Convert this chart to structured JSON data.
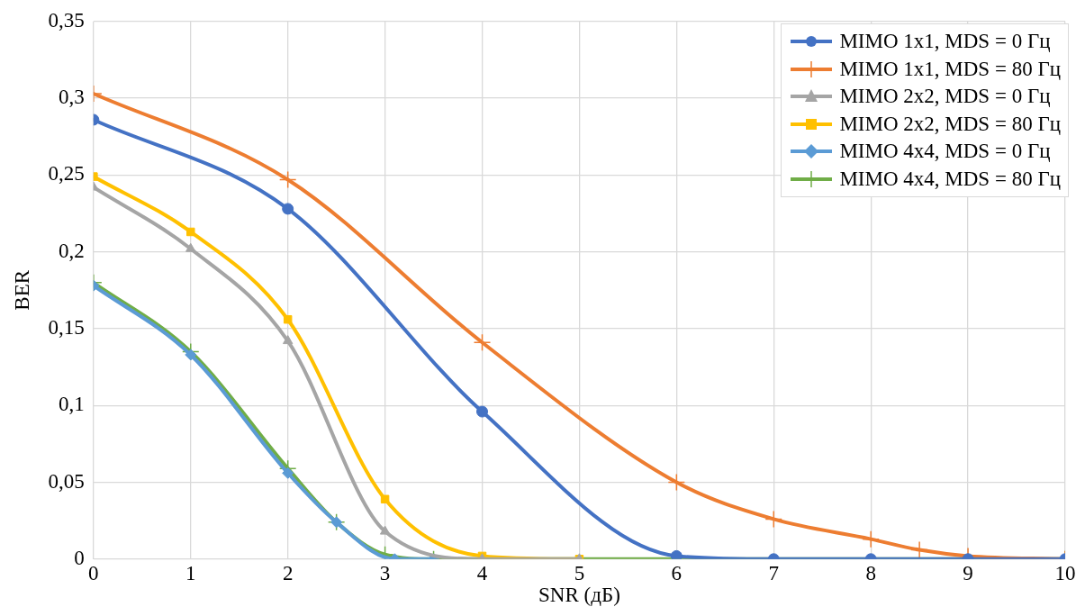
{
  "chart_data": {
    "type": "line",
    "xlabel": "SNR (дБ)",
    "ylabel": "BER",
    "legend": "top right",
    "grid": true,
    "line_style": "solid",
    "xlim": [
      0,
      10
    ],
    "xticks": [
      0,
      1,
      2,
      3,
      4,
      5,
      6,
      7,
      8,
      9,
      10
    ],
    "ylim": [
      0,
      0.35
    ],
    "yticks": [
      {
        "value": 0,
        "label": "0"
      },
      {
        "value": 0.05,
        "label": "0,05"
      },
      {
        "value": 0.1,
        "label": "0,1"
      },
      {
        "value": 0.15,
        "label": "0,15"
      },
      {
        "value": 0.2,
        "label": "0,2"
      },
      {
        "value": 0.25,
        "label": "0,25"
      },
      {
        "value": 0.3,
        "label": "0,3"
      },
      {
        "value": 0.35,
        "label": "0,35"
      }
    ],
    "series": [
      {
        "name": "MIMO 1x1, MDS = 0 Гц",
        "color": "#4472c4",
        "marker": "circle",
        "x": [
          0,
          2,
          4,
          6,
          7,
          8,
          9,
          10
        ],
        "values": [
          0.286,
          0.228,
          0.096,
          0.002,
          0,
          0,
          0,
          0
        ]
      },
      {
        "name": "MIMO 1x1, MDS = 80 Гц",
        "color": "#ed7d31",
        "marker": "cross",
        "x": [
          0,
          2,
          4,
          6,
          7,
          8,
          8.5,
          9,
          10
        ],
        "values": [
          0.303,
          0.247,
          0.141,
          0.05,
          0.026,
          0.013,
          0.006,
          0.002,
          0
        ]
      },
      {
        "name": "MIMO 2x2, MDS = 0 Гц",
        "color": "#a5a5a5",
        "marker": "triangle",
        "x": [
          0,
          1,
          2,
          3,
          4,
          5
        ],
        "values": [
          0.242,
          0.202,
          0.142,
          0.018,
          0,
          0
        ]
      },
      {
        "name": "MIMO 2x2, MDS = 80 Гц",
        "color": "#ffc000",
        "marker": "square",
        "x": [
          0,
          1,
          2,
          3,
          4,
          5
        ],
        "values": [
          0.249,
          0.213,
          0.156,
          0.039,
          0.002,
          0
        ]
      },
      {
        "name": "MIMO 4x4, MDS = 0 Гц",
        "color": "#5b9bd5",
        "marker": "diamond",
        "x": [
          0,
          1,
          2,
          2.5,
          3.1,
          3.5
        ],
        "values": [
          0.178,
          0.133,
          0.056,
          0.024,
          0,
          0
        ]
      },
      {
        "name": "MIMO 4x4, MDS = 80 Гц",
        "color": "#70ad47",
        "marker": "cross",
        "x": [
          0,
          1,
          2,
          2.5,
          3,
          3.5,
          10
        ],
        "values": [
          0.18,
          0.135,
          0.059,
          0.024,
          0.003,
          0,
          0
        ]
      }
    ]
  }
}
